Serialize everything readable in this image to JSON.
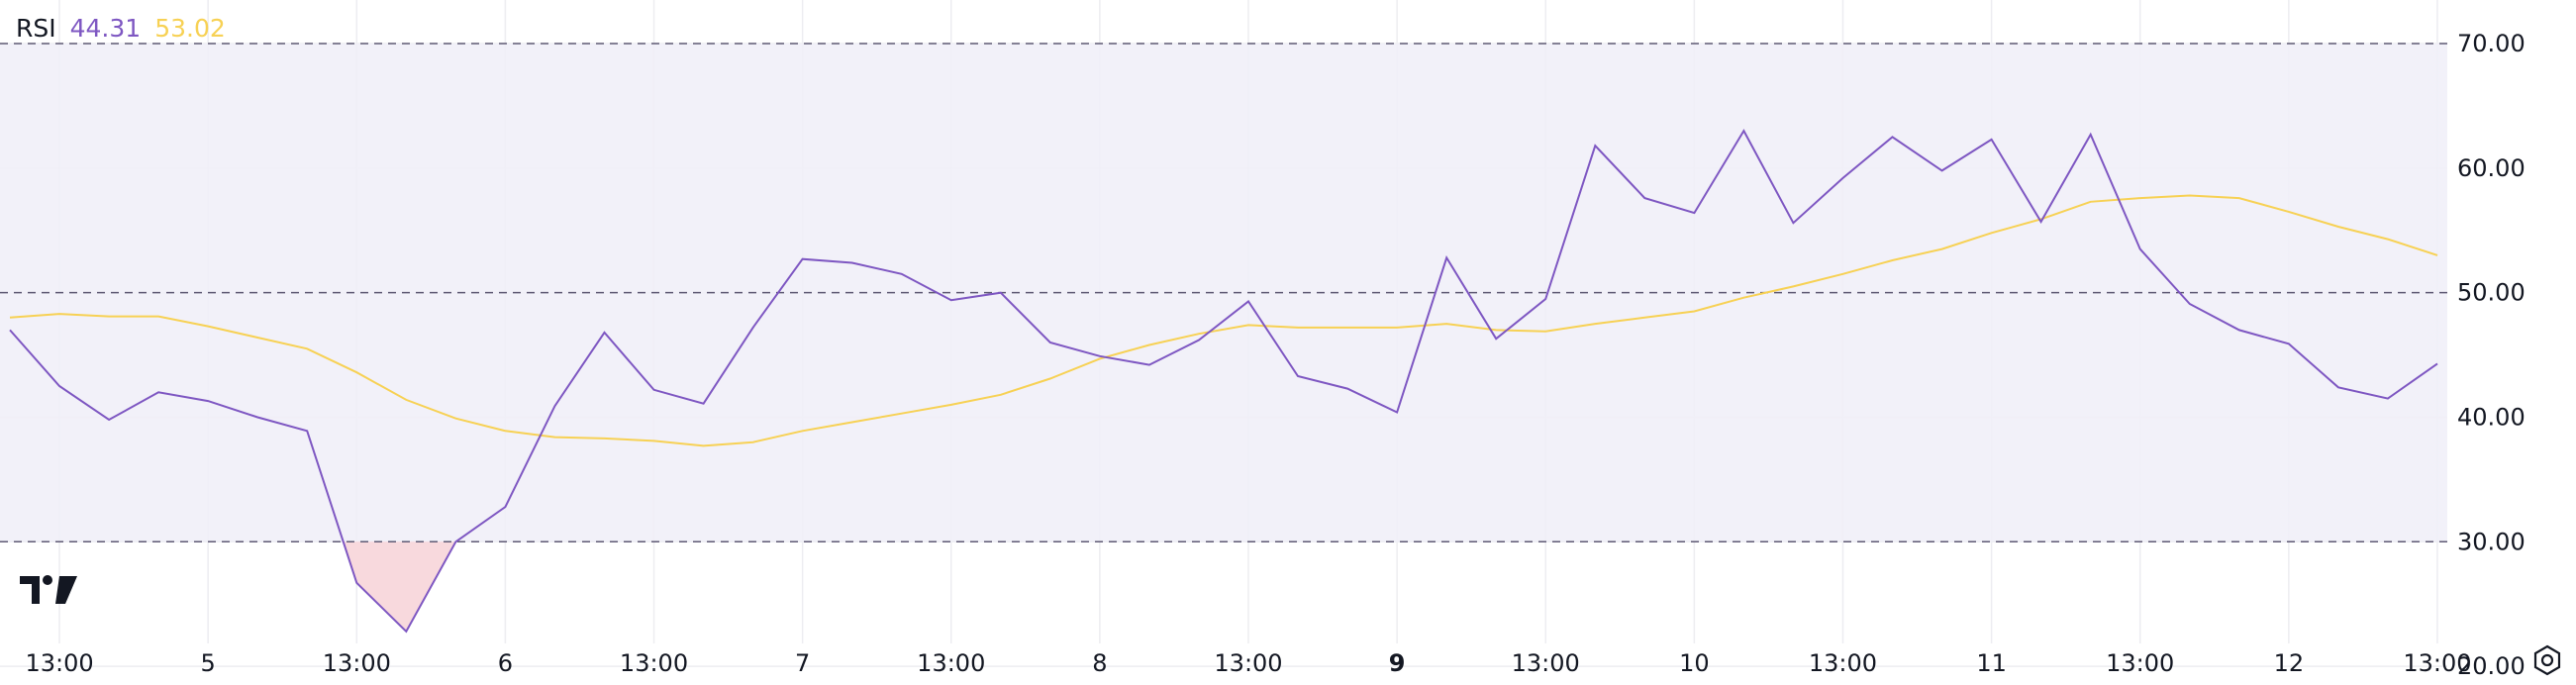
{
  "legend": {
    "title": "RSI",
    "value_rsi": "44.31",
    "value_ma": "53.02"
  },
  "colors": {
    "rsi_line": "#7E57C2",
    "ma_line": "#F7D154",
    "band_fill": "#F0EEF8",
    "oversold_fill": "#F8D9DD",
    "text": "#131722",
    "grid": "#EDEDF1",
    "dashed": "#5F5A74"
  },
  "icons": [
    "tradingview-logo-icon",
    "settings-icon"
  ],
  "chart_data": {
    "type": "line",
    "ylim": [
      18.5,
      73.5
    ],
    "y_ticks": [
      "70.00",
      "60.00",
      "50.00",
      "40.00",
      "30.00",
      "20.00"
    ],
    "y_tick_values": [
      70,
      60,
      50,
      40,
      30,
      20
    ],
    "band": [
      30,
      70
    ],
    "dashed_levels": [
      70,
      50,
      30
    ],
    "x_ticks": [
      {
        "label": "13:00",
        "i": 1,
        "bold": false
      },
      {
        "label": "5",
        "i": 4,
        "bold": false
      },
      {
        "label": "13:00",
        "i": 7,
        "bold": false
      },
      {
        "label": "6",
        "i": 10,
        "bold": false
      },
      {
        "label": "13:00",
        "i": 13,
        "bold": false
      },
      {
        "label": "7",
        "i": 16,
        "bold": false
      },
      {
        "label": "13:00",
        "i": 19,
        "bold": false
      },
      {
        "label": "8",
        "i": 22,
        "bold": false
      },
      {
        "label": "13:00",
        "i": 25,
        "bold": false
      },
      {
        "label": "9",
        "i": 28,
        "bold": true
      },
      {
        "label": "13:00",
        "i": 31,
        "bold": false
      },
      {
        "label": "10",
        "i": 34,
        "bold": false
      },
      {
        "label": "13:00",
        "i": 37,
        "bold": false
      },
      {
        "label": "11",
        "i": 40,
        "bold": false
      },
      {
        "label": "13:00",
        "i": 43,
        "bold": false
      },
      {
        "label": "12",
        "i": 46,
        "bold": false
      },
      {
        "label": "13:00",
        "i": 49,
        "bold": false
      }
    ],
    "series": [
      {
        "values": [
          47.0,
          42.5,
          39.8,
          42.0,
          41.3,
          40.0,
          38.9,
          26.7,
          22.8,
          30.0,
          32.8,
          40.9,
          46.8,
          42.2,
          41.1,
          47.2,
          52.7,
          52.4,
          51.5,
          49.4,
          50.0,
          46.0,
          44.9,
          44.2,
          46.2,
          49.3,
          43.3,
          42.3,
          40.4,
          52.8,
          46.3,
          49.5,
          61.8,
          57.6,
          56.4,
          63.0,
          55.6,
          59.2,
          62.5,
          59.8,
          62.3,
          55.7,
          62.7,
          53.5,
          49.1,
          47.0,
          45.9,
          42.4,
          41.5,
          44.3
        ]
      },
      {
        "values": [
          48.0,
          48.3,
          48.1,
          48.1,
          47.3,
          46.4,
          45.5,
          43.6,
          41.4,
          39.9,
          38.9,
          38.4,
          38.3,
          38.1,
          37.7,
          38.0,
          38.9,
          39.6,
          40.3,
          41.0,
          41.8,
          43.1,
          44.7,
          45.8,
          46.7,
          47.4,
          47.2,
          47.2,
          47.2,
          47.5,
          47.0,
          46.9,
          47.5,
          48.0,
          48.5,
          49.6,
          50.5,
          51.5,
          52.6,
          53.5,
          54.8,
          55.9,
          57.3,
          57.6,
          57.8,
          57.6,
          56.5,
          55.3,
          54.3,
          53.0
        ]
      }
    ]
  }
}
